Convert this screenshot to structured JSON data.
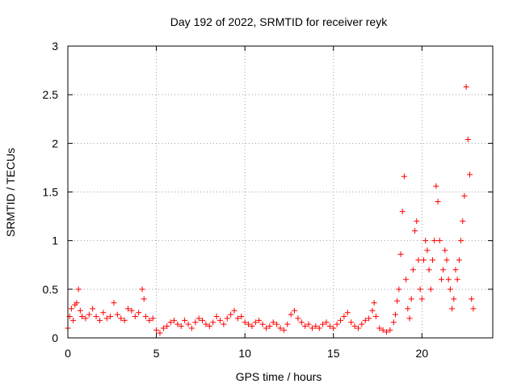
{
  "chart_data": {
    "type": "scatter",
    "title": "Day 192 of 2022, SRMTID for receiver reyk",
    "xlabel": "GPS time / hours",
    "ylabel": "SRMTID / TECUs",
    "xlim": [
      0,
      24
    ],
    "ylim": [
      0,
      3
    ],
    "xticks": [
      0,
      5,
      10,
      15,
      20
    ],
    "xtick_labels": [
      "0",
      "5",
      "10",
      "15",
      "20"
    ],
    "yticks": [
      0,
      0.5,
      1,
      1.5,
      2,
      2.5,
      3
    ],
    "ytick_labels": [
      "0",
      "0.5",
      "1",
      "1.5",
      "2",
      "2.5",
      "3"
    ],
    "grid": true,
    "marker": "+",
    "series": [
      {
        "name": "SRMTID",
        "color": "#ff0000",
        "x": [
          0.0,
          0.1,
          0.2,
          0.3,
          0.4,
          0.5,
          0.6,
          0.7,
          0.8,
          1.0,
          1.2,
          1.4,
          1.6,
          1.8,
          2.0,
          2.2,
          2.4,
          2.6,
          2.8,
          3.0,
          3.2,
          3.4,
          3.6,
          3.8,
          4.0,
          4.2,
          4.3,
          4.4,
          4.6,
          4.8,
          5.0,
          5.2,
          5.4,
          5.6,
          5.8,
          6.0,
          6.2,
          6.4,
          6.6,
          6.8,
          7.0,
          7.2,
          7.4,
          7.6,
          7.8,
          8.0,
          8.2,
          8.4,
          8.6,
          8.8,
          9.0,
          9.2,
          9.4,
          9.6,
          9.8,
          10.0,
          10.2,
          10.4,
          10.6,
          10.8,
          11.0,
          11.2,
          11.4,
          11.6,
          11.8,
          12.0,
          12.2,
          12.4,
          12.6,
          12.8,
          13.0,
          13.2,
          13.4,
          13.6,
          13.8,
          14.0,
          14.2,
          14.4,
          14.6,
          14.8,
          15.0,
          15.2,
          15.4,
          15.6,
          15.8,
          16.0,
          16.2,
          16.4,
          16.6,
          16.8,
          17.0,
          17.2,
          17.3,
          17.4,
          17.6,
          17.8,
          18.0,
          18.2,
          18.4,
          18.5,
          18.6,
          18.7,
          18.8,
          18.9,
          19.0,
          19.1,
          19.2,
          19.3,
          19.4,
          19.5,
          19.6,
          19.7,
          19.8,
          19.9,
          20.0,
          20.1,
          20.2,
          20.3,
          20.4,
          20.5,
          20.6,
          20.7,
          20.8,
          20.9,
          21.0,
          21.1,
          21.2,
          21.3,
          21.4,
          21.5,
          21.6,
          21.7,
          21.8,
          21.9,
          22.0,
          22.1,
          22.2,
          22.3,
          22.4,
          22.5,
          22.6,
          22.7,
          22.8,
          22.9
        ],
        "y": [
          0.1,
          0.22,
          0.3,
          0.18,
          0.34,
          0.36,
          0.5,
          0.28,
          0.22,
          0.2,
          0.24,
          0.3,
          0.22,
          0.18,
          0.26,
          0.2,
          0.22,
          0.36,
          0.24,
          0.2,
          0.18,
          0.3,
          0.28,
          0.22,
          0.26,
          0.5,
          0.4,
          0.22,
          0.18,
          0.2,
          0.08,
          0.05,
          0.1,
          0.12,
          0.16,
          0.18,
          0.14,
          0.12,
          0.18,
          0.14,
          0.1,
          0.16,
          0.2,
          0.18,
          0.14,
          0.12,
          0.16,
          0.22,
          0.18,
          0.14,
          0.2,
          0.24,
          0.28,
          0.2,
          0.22,
          0.16,
          0.14,
          0.12,
          0.16,
          0.18,
          0.14,
          0.1,
          0.12,
          0.16,
          0.14,
          0.1,
          0.08,
          0.14,
          0.24,
          0.28,
          0.2,
          0.16,
          0.12,
          0.14,
          0.1,
          0.12,
          0.1,
          0.14,
          0.16,
          0.12,
          0.1,
          0.14,
          0.18,
          0.22,
          0.26,
          0.16,
          0.12,
          0.1,
          0.14,
          0.18,
          0.2,
          0.28,
          0.36,
          0.22,
          0.1,
          0.08,
          0.06,
          0.08,
          0.16,
          0.24,
          0.38,
          0.5,
          0.86,
          1.3,
          1.66,
          0.6,
          0.3,
          0.2,
          0.4,
          0.7,
          1.1,
          1.2,
          0.8,
          0.5,
          0.4,
          0.8,
          1.0,
          0.9,
          0.7,
          0.5,
          0.8,
          1.0,
          1.56,
          1.4,
          1.0,
          0.6,
          0.7,
          0.9,
          0.8,
          0.6,
          0.5,
          0.3,
          0.4,
          0.7,
          0.6,
          0.8,
          1.0,
          1.2,
          1.46,
          2.58,
          2.04,
          1.68,
          0.4,
          0.3
        ]
      }
    ]
  }
}
